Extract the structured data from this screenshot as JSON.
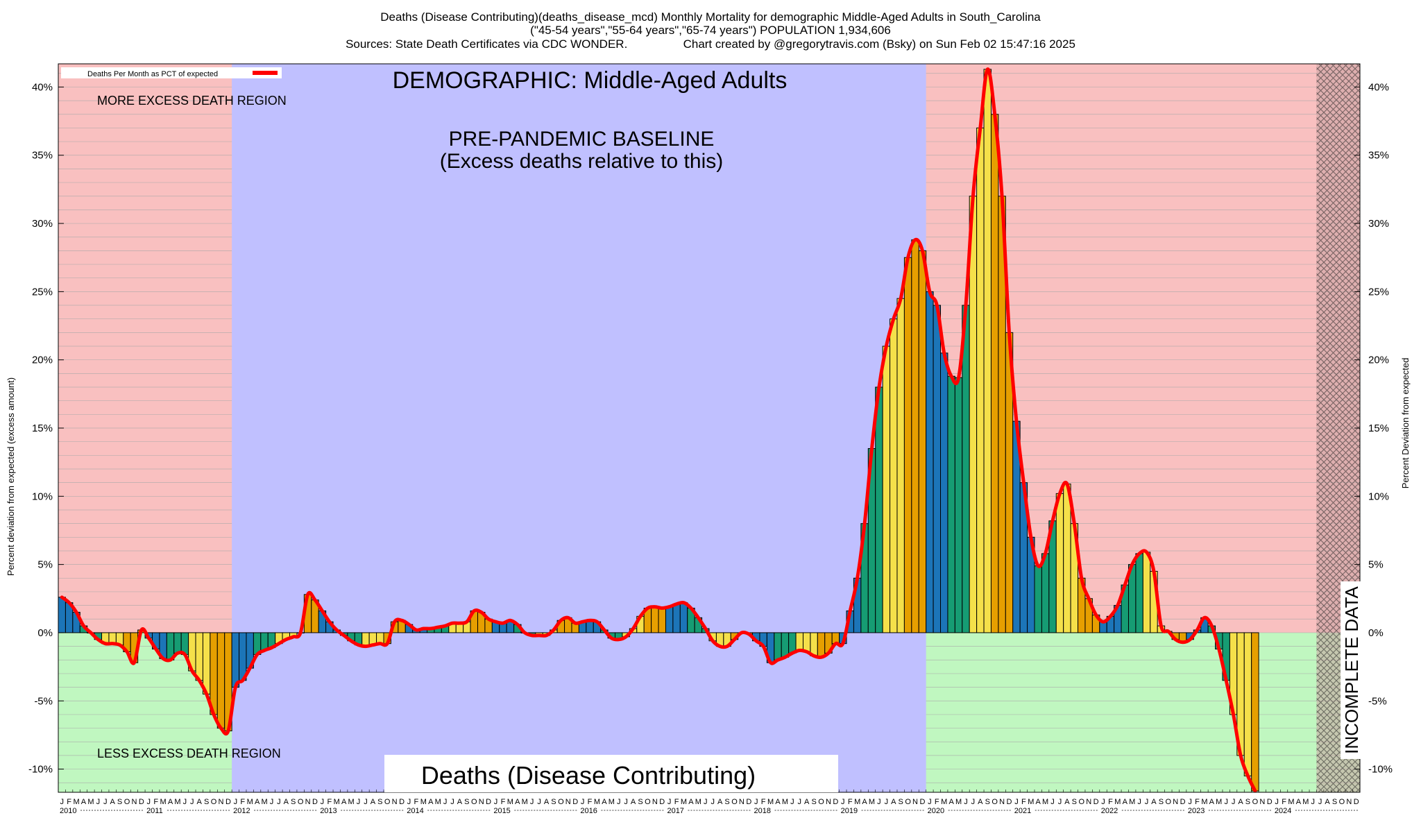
{
  "header": {
    "line1": "Deaths (Disease Contributing)(deaths_disease_mcd) Monthly Mortality for demographic Middle-Aged Adults in South_Carolina",
    "line2": "(\"45-54 years\",\"55-64 years\",\"65-74 years\") POPULATION 1,934,606",
    "line3": "Sources: State Death Certificates via CDC WONDER.                 Chart created by @gregorytravis.com (Bsky) on Sun Feb 02 15:47:16 2025"
  },
  "legend": {
    "label": "Deaths Per Month as PCT of expected"
  },
  "annotations": {
    "demographic": "DEMOGRAPHIC: Middle-Aged Adults",
    "more_excess": "MORE EXCESS DEATH REGION",
    "less_excess": "LESS EXCESS DEATH REGION",
    "baseline_line1": "PRE-PANDEMIC BASELINE",
    "baseline_line2": "(Excess deaths relative to this)",
    "incomplete": "INCOMPLETE DATA",
    "bottom_title": "Deaths (Disease Contributing)"
  },
  "colors": {
    "excess_region": "#f9c0c0",
    "less_region": "#c0f7c0",
    "baseline_region": "#c0c0ff",
    "incomplete_region": "#c8a0a0",
    "curve": "#ff0000",
    "bar_blue": "#1c75b8",
    "bar_green": "#169c73",
    "bar_yellow": "#f5e04a",
    "bar_orange": "#e69f00"
  },
  "chart_data": {
    "type": "bar",
    "ylabel_left": "Percent deviation from expected (excess amount)",
    "ylabel_right": "Percent Deviation from expected",
    "ylim": [
      -11.7,
      41.7
    ],
    "yticks": [
      -10,
      -5,
      0,
      5,
      10,
      15,
      20,
      25,
      30,
      35,
      40
    ],
    "ytick_labels": [
      "-10%",
      "-5%",
      "0%",
      "5%",
      "10%",
      "15%",
      "20%",
      "25%",
      "30%",
      "35%",
      "40%"
    ],
    "start_year": 2010,
    "month_letters": [
      "J",
      "F",
      "M",
      "A",
      "M",
      "J",
      "J",
      "A",
      "S",
      "O",
      "N",
      "D"
    ],
    "years": [
      "2010",
      "2011",
      "2012",
      "2013",
      "2014",
      "2015",
      "2016",
      "2017",
      "2018",
      "2019",
      "2020",
      "2021",
      "2022",
      "2023",
      "2024"
    ],
    "baseline_region_years": [
      "2012",
      "2019"
    ],
    "incomplete_from": "2024-07",
    "values": [
      2.6,
      2.2,
      1.5,
      0.5,
      0,
      -0.5,
      -0.8,
      -0.8,
      -0.9,
      -1.4,
      -2.2,
      0.2,
      -0.4,
      -1.2,
      -1.9,
      -2.0,
      -1.5,
      -1.6,
      -2.8,
      -3.5,
      -4.5,
      -6.0,
      -7.0,
      -7.2,
      -4.0,
      -3.5,
      -2.6,
      -1.6,
      -1.3,
      -1.1,
      -0.8,
      -0.5,
      -0.3,
      0,
      2.8,
      2.4,
      1.6,
      0.8,
      0.2,
      -0.2,
      -0.6,
      -0.9,
      -1.0,
      -0.9,
      -0.8,
      -0.8,
      0.8,
      0.9,
      0.6,
      0.2,
      0.3,
      0.3,
      0.4,
      0.5,
      0.7,
      0.7,
      0.8,
      1.6,
      1.5,
      1.0,
      0.8,
      0.7,
      0.9,
      0.6,
      0,
      -0.2,
      -0.2,
      -0.2,
      0.2,
      0.9,
      1.1,
      0.7,
      0.8,
      0.9,
      0.8,
      0.2,
      -0.4,
      -0.5,
      -0.3,
      0.3,
      1.2,
      1.8,
      1.9,
      1.8,
      1.9,
      2.1,
      2.2,
      1.8,
      1.1,
      0.3,
      -0.6,
      -1.0,
      -1.0,
      -0.5,
      0,
      -0.1,
      -0.6,
      -1.0,
      -2.2,
      -2.0,
      -1.8,
      -1.5,
      -1.3,
      -1.4,
      -1.7,
      -1.8,
      -1.5,
      -0.8,
      -0.8,
      1.6,
      4.0,
      8.0,
      13.5,
      18.0,
      21.0,
      23.0,
      24.5,
      27.5,
      28.8,
      28.0,
      25.0,
      24.0,
      20.5,
      18.8,
      18.7,
      24.0,
      32.0,
      37.0,
      41.3,
      38.0,
      32.0,
      22.0,
      15.5,
      11.0,
      7.0,
      4.9,
      5.8,
      8.2,
      10.2,
      10.9,
      8.0,
      4.0,
      2.5,
      1.3,
      0.8,
      1.2,
      2.0,
      3.5,
      5.0,
      5.8,
      5.9,
      4.5,
      0.5,
      0.1,
      -0.5,
      -0.7,
      -0.5,
      0.2,
      1.1,
      0.5,
      -1.2,
      -3.5,
      -6.0,
      -9.0,
      -10.5,
      -11.6
    ]
  }
}
